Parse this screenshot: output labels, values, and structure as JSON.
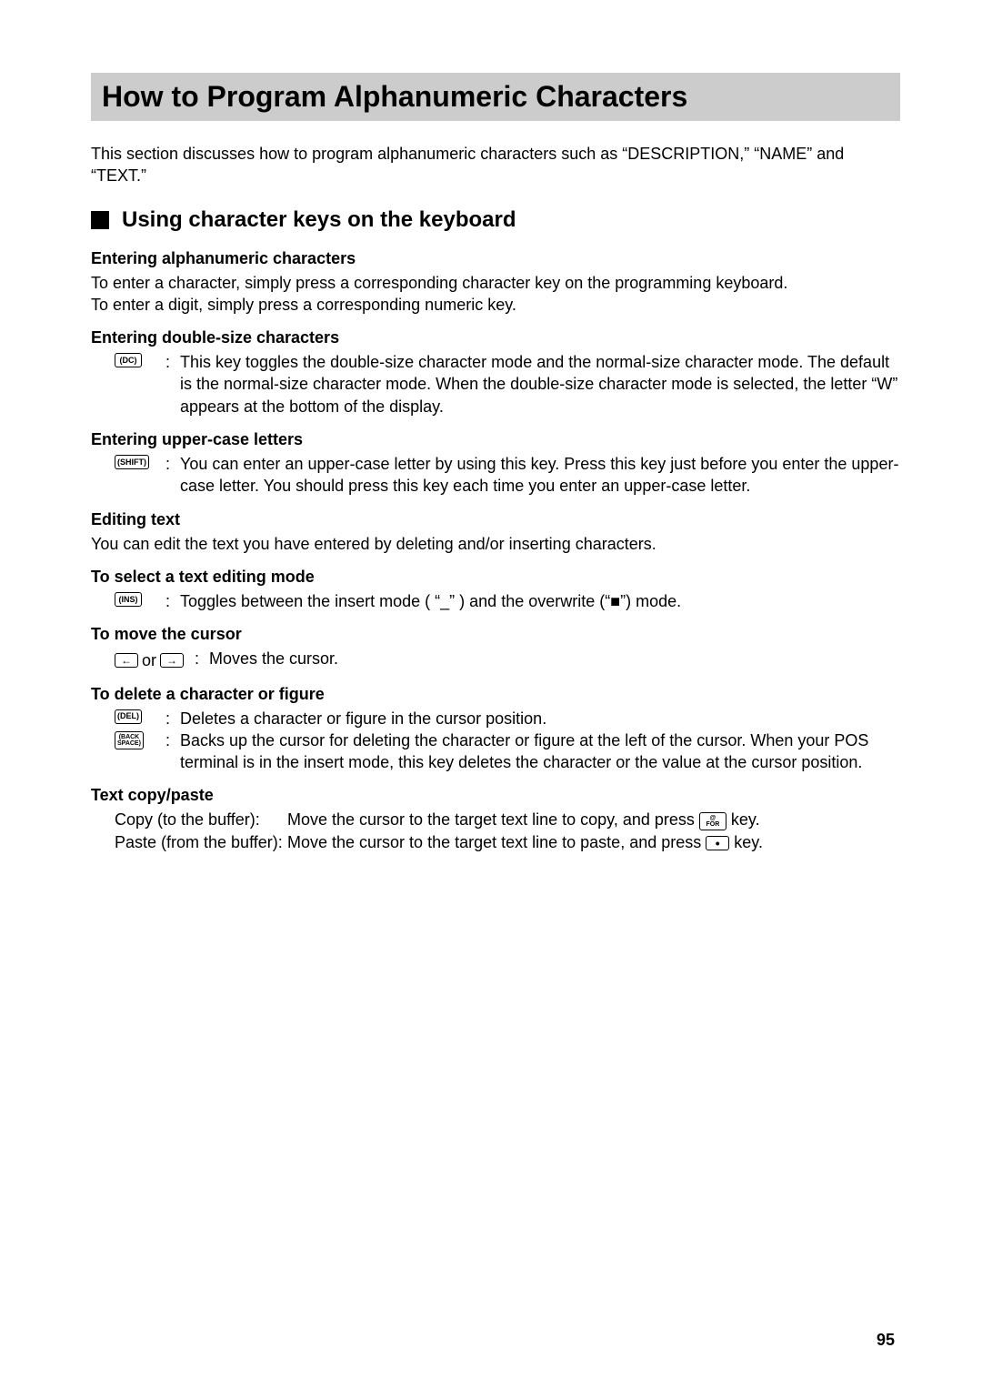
{
  "page_number": "95",
  "title": "How to Program Alphanumeric Characters",
  "intro": "This section discusses how to program alphanumeric characters such as “DESCRIPTION,” “NAME” and “TEXT.”",
  "section_heading": "Using character keys on the keyboard",
  "entering_alpha": {
    "heading": "Entering alphanumeric characters",
    "line1": "To enter a character, simply press a corresponding character key on the programming keyboard.",
    "line2": "To enter a digit, simply press a corresponding numeric key."
  },
  "entering_double": {
    "heading": "Entering double-size characters",
    "key": "(DC)",
    "desc": "This key toggles the double-size character mode and the normal-size character mode. The default is the normal-size character mode. When the double-size character mode is selected, the letter “W” appears at the bottom of the display."
  },
  "entering_upper": {
    "heading": "Entering upper-case letters",
    "key": "(SHIFT)",
    "desc": "You can enter an upper-case letter by using this key. Press this key just before you enter the upper-case letter. You should press this key each time you enter an upper-case letter."
  },
  "editing_text": {
    "heading": "Editing text",
    "line1": "You can edit the text you have entered by deleting and/or inserting characters."
  },
  "select_mode": {
    "heading": "To select a text editing mode",
    "key": "(INS)",
    "desc": "Toggles between the insert mode ( “_” ) and the overwrite (“■”) mode."
  },
  "move_cursor": {
    "heading": "To move the cursor",
    "left_key": "←",
    "or_text": " or ",
    "right_key": "→",
    "desc": "Moves the cursor."
  },
  "delete_char": {
    "heading": "To delete a character or figure",
    "del_key": "(DEL)",
    "del_desc": "Deletes a character or figure in the cursor position.",
    "back_key_line1": "(BACK",
    "back_key_line2": "SPACE)",
    "back_desc": "Backs up the cursor for deleting the character or figure at the left of the cursor. When your POS terminal is in the insert mode, this key deletes the character or the value at the cursor position."
  },
  "copy_paste": {
    "heading": "Text copy/paste",
    "copy_label": "Copy (to the buffer):",
    "copy_desc_before": "Move the cursor to the target text line to copy, and press ",
    "copy_key_line1": "@",
    "copy_key_line2": "FOR",
    "copy_desc_after": " key.",
    "paste_label": "Paste (from the buffer):",
    "paste_desc_before": "Move the cursor to the target text line to paste, and press ",
    "paste_key": "•",
    "paste_desc_after": " key."
  }
}
